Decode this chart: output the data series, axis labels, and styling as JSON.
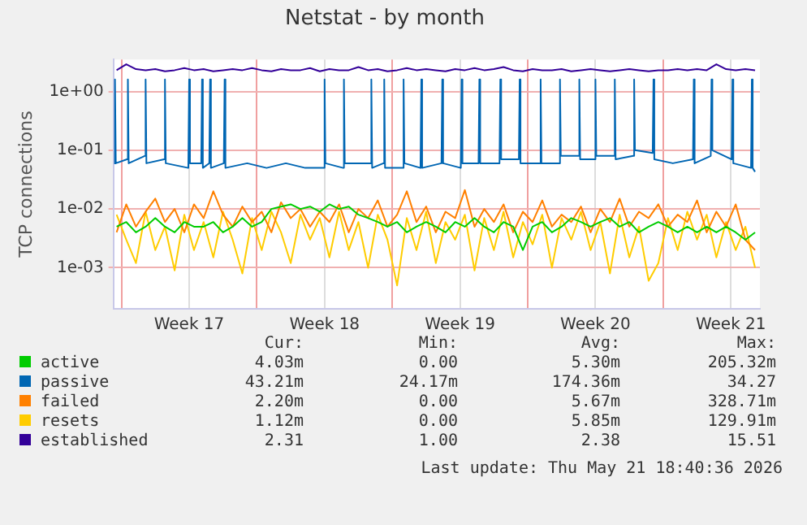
{
  "chart_data": {
    "type": "line",
    "title": "Netstat - by month",
    "ylabel": "TCP connections",
    "log": "y",
    "grid": true,
    "legend": "bottom",
    "marker": "none",
    "line_style": "solid",
    "xlim": [
      "2026-04-18T14:00",
      "2026-05-22T00:00"
    ],
    "xticks": [
      {
        "value": "2026-04-19",
        "label": null
      },
      {
        "value": "2026-04-22T12:00",
        "label": "Week 17"
      },
      {
        "value": "2026-04-26",
        "label": null
      },
      {
        "value": "2026-04-29T12:00",
        "label": "Week 18"
      },
      {
        "value": "2026-05-03",
        "label": null
      },
      {
        "value": "2026-05-06T12:00",
        "label": "Week 19"
      },
      {
        "value": "2026-05-10",
        "label": null
      },
      {
        "value": "2026-05-13T12:00",
        "label": "Week 20"
      },
      {
        "value": "2026-05-17",
        "label": null
      },
      {
        "value": "2026-05-20T12:00",
        "label": "Week 21"
      }
    ],
    "ylim": [
      0.0002,
      3.5
    ],
    "yticks": [
      {
        "value": 0.001,
        "label": "1e-03"
      },
      {
        "value": 0.01,
        "label": "1e-02"
      },
      {
        "value": 0.1,
        "label": "1e-01"
      },
      {
        "value": 1,
        "label": "1e+00"
      }
    ],
    "x": [
      "2026-04-18T18:00",
      "2026-04-19T06:00",
      "2026-04-19T18:00",
      "2026-04-20T06:00",
      "2026-04-20T18:00",
      "2026-04-21T06:00",
      "2026-04-21T18:00",
      "2026-04-22T06:00",
      "2026-04-22T18:00",
      "2026-04-23T06:00",
      "2026-04-23T18:00",
      "2026-04-24T06:00",
      "2026-04-24T18:00",
      "2026-04-25T06:00",
      "2026-04-25T18:00",
      "2026-04-26T06:00",
      "2026-04-26T18:00",
      "2026-04-27T06:00",
      "2026-04-27T18:00",
      "2026-04-28T06:00",
      "2026-04-28T18:00",
      "2026-04-29T06:00",
      "2026-04-29T18:00",
      "2026-04-30T06:00",
      "2026-04-30T18:00",
      "2026-05-01T06:00",
      "2026-05-01T18:00",
      "2026-05-02T06:00",
      "2026-05-02T18:00",
      "2026-05-03T06:00",
      "2026-05-03T18:00",
      "2026-05-04T06:00",
      "2026-05-04T18:00",
      "2026-05-05T06:00",
      "2026-05-05T18:00",
      "2026-05-06T06:00",
      "2026-05-06T18:00",
      "2026-05-07T06:00",
      "2026-05-07T18:00",
      "2026-05-08T06:00",
      "2026-05-08T18:00",
      "2026-05-09T06:00",
      "2026-05-09T18:00",
      "2026-05-10T06:00",
      "2026-05-10T18:00",
      "2026-05-11T06:00",
      "2026-05-11T18:00",
      "2026-05-12T06:00",
      "2026-05-12T18:00",
      "2026-05-13T06:00",
      "2026-05-13T18:00",
      "2026-05-14T06:00",
      "2026-05-14T18:00",
      "2026-05-15T06:00",
      "2026-05-15T18:00",
      "2026-05-16T06:00",
      "2026-05-16T18:00",
      "2026-05-17T06:00",
      "2026-05-17T18:00",
      "2026-05-18T06:00",
      "2026-05-18T18:00",
      "2026-05-19T06:00",
      "2026-05-19T18:00",
      "2026-05-20T06:00",
      "2026-05-20T18:00",
      "2026-05-21T06:00",
      "2026-05-21T18:00"
    ],
    "series": [
      {
        "name": "active",
        "color": "#00cc00",
        "values": [
          0.005,
          0.006,
          0.004,
          0.005,
          0.007,
          0.005,
          0.004,
          0.006,
          0.005,
          0.005,
          0.006,
          0.004,
          0.005,
          0.007,
          0.005,
          0.006,
          0.01,
          0.011,
          0.012,
          0.01,
          0.011,
          0.009,
          0.012,
          0.01,
          0.011,
          0.008,
          0.007,
          0.006,
          0.005,
          0.006,
          0.004,
          0.005,
          0.006,
          0.005,
          0.004,
          0.006,
          0.005,
          0.007,
          0.005,
          0.004,
          0.006,
          0.005,
          0.002,
          0.005,
          0.006,
          0.004,
          0.005,
          0.007,
          0.006,
          0.005,
          0.006,
          0.007,
          0.005,
          0.006,
          0.004,
          0.005,
          0.006,
          0.005,
          0.004,
          0.005,
          0.004,
          0.005,
          0.004,
          0.005,
          0.004,
          0.003,
          0.004
        ]
      },
      {
        "name": "passive",
        "color": "#0066b3",
        "x": [
          "2026-04-18T15:00",
          "2026-04-18T16:00",
          "2026-04-18T17:00",
          "2026-04-19T07:00",
          "2026-04-19T08:00",
          "2026-04-19T09:00",
          "2026-04-20T05:00",
          "2026-04-20T06:00",
          "2026-04-20T07:00",
          "2026-04-21T05:00",
          "2026-04-21T06:00",
          "2026-04-21T07:00",
          "2026-04-22T11:00",
          "2026-04-22T12:00",
          "2026-04-22T13:00",
          "2026-04-23T03:00",
          "2026-04-23T04:00",
          "2026-04-23T05:00",
          "2026-04-23T13:00",
          "2026-04-23T14:00",
          "2026-04-23T15:00",
          "2026-04-24T07:00",
          "2026-04-24T08:00",
          "2026-04-24T09:00",
          "2026-04-25T12:00",
          "2026-04-26T12:00",
          "2026-04-27T12:00",
          "2026-04-28T12:00",
          "2026-04-29T11:00",
          "2026-04-29T12:00",
          "2026-04-29T13:00",
          "2026-04-30T11:00",
          "2026-04-30T12:00",
          "2026-04-30T13:00",
          "2026-05-01T21:00",
          "2026-05-01T22:00",
          "2026-05-01T23:00",
          "2026-05-02T13:00",
          "2026-05-02T14:00",
          "2026-05-02T15:00",
          "2026-05-03T13:00",
          "2026-05-03T14:00",
          "2026-05-03T15:00",
          "2026-05-04T11:00",
          "2026-05-04T12:00",
          "2026-05-04T13:00",
          "2026-05-05T13:00",
          "2026-05-05T14:00",
          "2026-05-05T15:00",
          "2026-05-06T13:00",
          "2026-05-06T14:00",
          "2026-05-06T15:00",
          "2026-05-07T11:00",
          "2026-05-07T12:00",
          "2026-05-07T13:00",
          "2026-05-08T13:00",
          "2026-05-08T14:00",
          "2026-05-08T15:00",
          "2026-05-09T13:00",
          "2026-05-09T14:00",
          "2026-05-09T15:00",
          "2026-05-10T15:00",
          "2026-05-10T16:00",
          "2026-05-10T17:00",
          "2026-05-11T15:00",
          "2026-05-11T16:00",
          "2026-05-11T17:00",
          "2026-05-12T15:00",
          "2026-05-12T16:00",
          "2026-05-12T17:00",
          "2026-05-13T11:00",
          "2026-05-13T12:00",
          "2026-05-13T13:00",
          "2026-05-14T11:00",
          "2026-05-14T12:00",
          "2026-05-14T13:00",
          "2026-05-15T11:00",
          "2026-05-15T12:00",
          "2026-05-15T13:00",
          "2026-05-16T11:00",
          "2026-05-16T12:00",
          "2026-05-16T13:00",
          "2026-05-17T12:00",
          "2026-05-18T13:00",
          "2026-05-18T14:00",
          "2026-05-18T15:00",
          "2026-05-19T11:00",
          "2026-05-19T12:00",
          "2026-05-19T13:00",
          "2026-05-20T13:00",
          "2026-05-20T14:00",
          "2026-05-20T15:00",
          "2026-05-21T13:00",
          "2026-05-21T14:00",
          "2026-05-21T15:00",
          "2026-05-21T18:00"
        ],
        "values": [
          0.06,
          1.6,
          0.06,
          0.07,
          1.6,
          0.06,
          0.08,
          1.6,
          0.06,
          0.07,
          1.6,
          0.06,
          0.05,
          1.6,
          0.06,
          0.06,
          1.6,
          0.05,
          0.06,
          1.6,
          0.05,
          0.06,
          1.6,
          0.05,
          0.06,
          0.05,
          0.06,
          0.05,
          0.05,
          1.6,
          0.06,
          0.05,
          1.6,
          0.06,
          0.06,
          1.6,
          0.05,
          0.06,
          1.6,
          0.05,
          0.05,
          1.6,
          0.06,
          0.05,
          1.6,
          0.05,
          0.06,
          1.6,
          0.06,
          0.05,
          1.6,
          0.06,
          0.06,
          1.6,
          0.06,
          0.06,
          1.6,
          0.07,
          0.07,
          1.6,
          0.06,
          0.06,
          1.6,
          0.06,
          0.06,
          1.6,
          0.08,
          0.08,
          1.6,
          0.07,
          0.07,
          1.6,
          0.08,
          0.08,
          1.6,
          0.07,
          0.08,
          1.6,
          0.1,
          0.09,
          1.6,
          0.07,
          0.06,
          0.07,
          1.6,
          0.06,
          0.08,
          1.6,
          0.1,
          0.07,
          1.6,
          0.06,
          0.05,
          1.6,
          0.05,
          0.043
        ]
      },
      {
        "name": "failed",
        "color": "#ff8000",
        "values": [
          0.004,
          0.012,
          0.005,
          0.009,
          0.015,
          0.006,
          0.01,
          0.004,
          0.012,
          0.007,
          0.02,
          0.008,
          0.005,
          0.011,
          0.006,
          0.009,
          0.004,
          0.013,
          0.007,
          0.01,
          0.005,
          0.009,
          0.006,
          0.012,
          0.004,
          0.01,
          0.007,
          0.014,
          0.005,
          0.008,
          0.02,
          0.006,
          0.011,
          0.004,
          0.009,
          0.007,
          0.021,
          0.005,
          0.01,
          0.006,
          0.012,
          0.004,
          0.009,
          0.006,
          0.014,
          0.005,
          0.008,
          0.006,
          0.011,
          0.004,
          0.01,
          0.006,
          0.015,
          0.005,
          0.009,
          0.007,
          0.012,
          0.005,
          0.008,
          0.006,
          0.014,
          0.004,
          0.009,
          0.005,
          0.012,
          0.003,
          0.002
        ]
      },
      {
        "name": "resets",
        "color": "#ffcc00",
        "values": [
          0.008,
          0.003,
          0.0012,
          0.009,
          0.002,
          0.005,
          0.0009,
          0.008,
          0.002,
          0.006,
          0.0015,
          0.009,
          0.003,
          0.0008,
          0.007,
          0.002,
          0.009,
          0.004,
          0.0012,
          0.008,
          0.003,
          0.007,
          0.0015,
          0.009,
          0.002,
          0.006,
          0.001,
          0.008,
          0.003,
          0.0005,
          0.007,
          0.002,
          0.009,
          0.0012,
          0.006,
          0.003,
          0.008,
          0.0009,
          0.007,
          0.002,
          0.009,
          0.0015,
          0.006,
          0.0025,
          0.008,
          0.001,
          0.007,
          0.003,
          0.009,
          0.002,
          0.006,
          0.0008,
          0.008,
          0.0015,
          0.005,
          0.0006,
          0.0012,
          0.007,
          0.002,
          0.009,
          0.003,
          0.008,
          0.0015,
          0.006,
          0.002,
          0.005,
          0.001
        ]
      },
      {
        "name": "established",
        "color": "#330099",
        "values": [
          2.3,
          2.9,
          2.4,
          2.3,
          2.4,
          2.2,
          2.3,
          2.5,
          2.3,
          2.4,
          2.2,
          2.3,
          2.4,
          2.3,
          2.5,
          2.3,
          2.2,
          2.4,
          2.3,
          2.3,
          2.5,
          2.2,
          2.4,
          2.3,
          2.3,
          2.6,
          2.3,
          2.4,
          2.2,
          2.3,
          2.5,
          2.3,
          2.4,
          2.3,
          2.2,
          2.4,
          2.3,
          2.5,
          2.3,
          2.4,
          2.6,
          2.3,
          2.2,
          2.4,
          2.3,
          2.3,
          2.4,
          2.2,
          2.3,
          2.4,
          2.3,
          2.2,
          2.3,
          2.4,
          2.3,
          2.2,
          2.3,
          2.3,
          2.4,
          2.3,
          2.4,
          2.3,
          2.9,
          2.4,
          2.3,
          2.4,
          2.3
        ]
      }
    ],
    "annotations": [
      "Cur:",
      "Min:",
      "Avg:",
      "Max:",
      "4.03m",
      "0.00",
      "5.30m",
      "205.32m",
      "43.21m",
      "24.17m",
      "174.36m",
      "34.27",
      "2.20m",
      "0.00",
      "5.67m",
      "328.71m",
      "1.12m",
      "0.00",
      "5.85m",
      "129.91m",
      "2.31",
      "1.00",
      "2.38",
      "15.51",
      "Last update: Thu May 21 18:40:36 2026"
    ]
  }
}
